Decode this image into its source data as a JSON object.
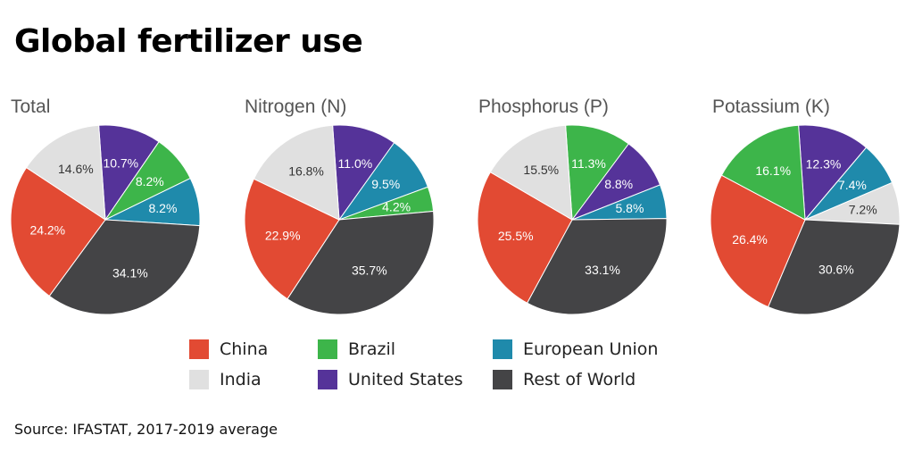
{
  "title": "Global fertilizer use",
  "source": "Source: IFASTAT, 2017-2019 average",
  "colors": {
    "China": "#e24a33",
    "India": "#e0e0e0",
    "Brazil": "#3db54a",
    "United States": "#553399",
    "European Union": "#1f8aab",
    "Rest of World": "#444446"
  },
  "legend": [
    "China",
    "India",
    "Brazil",
    "United States",
    "European Union",
    "Rest of World"
  ],
  "chart_data": [
    {
      "type": "pie",
      "title": "Total",
      "slices": [
        {
          "name": "United States",
          "value": 10.7,
          "label": "10.7%"
        },
        {
          "name": "Brazil",
          "value": 8.2,
          "label": "8.2%"
        },
        {
          "name": "European Union",
          "value": 8.2,
          "label": "8.2%"
        },
        {
          "name": "Rest of World",
          "value": 34.1,
          "label": "34.1%"
        },
        {
          "name": "China",
          "value": 24.2,
          "label": "24.2%"
        },
        {
          "name": "India",
          "value": 14.6,
          "label": "14.6%"
        }
      ]
    },
    {
      "type": "pie",
      "title": "Nitrogen (N)",
      "slices": [
        {
          "name": "United States",
          "value": 11.0,
          "label": "11.0%"
        },
        {
          "name": "European Union",
          "value": 9.5,
          "label": "9.5%"
        },
        {
          "name": "Brazil",
          "value": 4.2,
          "label": "4.2%"
        },
        {
          "name": "Rest of World",
          "value": 35.7,
          "label": "35.7%"
        },
        {
          "name": "China",
          "value": 22.9,
          "label": "22.9%"
        },
        {
          "name": "India",
          "value": 16.8,
          "label": "16.8%"
        }
      ]
    },
    {
      "type": "pie",
      "title": "Phosphorus (P)",
      "slices": [
        {
          "name": "Brazil",
          "value": 11.3,
          "label": "11.3%"
        },
        {
          "name": "United States",
          "value": 8.8,
          "label": "8.8%"
        },
        {
          "name": "European Union",
          "value": 5.8,
          "label": "5.8%"
        },
        {
          "name": "Rest of World",
          "value": 33.1,
          "label": "33.1%"
        },
        {
          "name": "China",
          "value": 25.5,
          "label": "25.5%"
        },
        {
          "name": "India",
          "value": 15.5,
          "label": "15.5%"
        }
      ]
    },
    {
      "type": "pie",
      "title": "Potassium (K)",
      "slices": [
        {
          "name": "United States",
          "value": 12.3,
          "label": "12.3%"
        },
        {
          "name": "European Union",
          "value": 7.4,
          "label": "7.4%"
        },
        {
          "name": "India",
          "value": 7.2,
          "label": "7.2%"
        },
        {
          "name": "Rest of World",
          "value": 30.6,
          "label": "30.6%"
        },
        {
          "name": "China",
          "value": 26.4,
          "label": "26.4%"
        },
        {
          "name": "Brazil",
          "value": 16.1,
          "label": "16.1%"
        }
      ]
    }
  ]
}
